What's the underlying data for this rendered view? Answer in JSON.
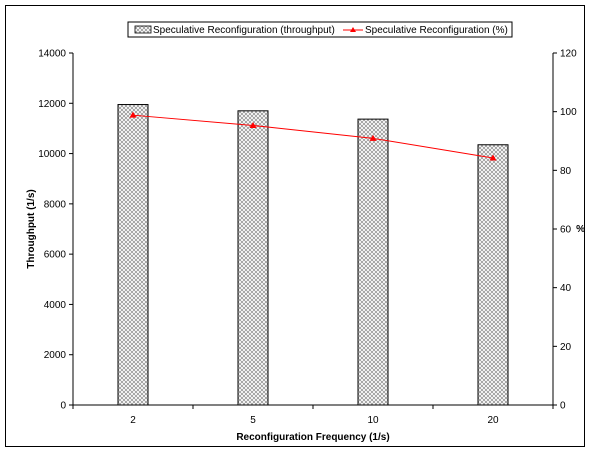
{
  "chart_data": {
    "type": "bar",
    "categories": [
      "2",
      "5",
      "10",
      "20"
    ],
    "xlabel": "Reconfiguration Frequency (1/s)",
    "ylabel": "Throughput (1/s)",
    "y2label": "%",
    "ylim": [
      0,
      14000
    ],
    "y2lim": [
      0,
      120
    ],
    "yticks": [
      0,
      2000,
      4000,
      6000,
      8000,
      10000,
      12000,
      14000
    ],
    "y2ticks": [
      0,
      20,
      40,
      60,
      80,
      100,
      120
    ],
    "grid": false,
    "legend_position": "top",
    "series": [
      {
        "name": "Speculative Reconfiguration (throughput)",
        "type": "bar",
        "axis": "left",
        "values": [
          11950,
          11700,
          11370,
          10350
        ],
        "fill_pattern": "crosshatch"
      },
      {
        "name": "Speculative Reconfiguration (%)",
        "type": "line",
        "axis": "right",
        "values": [
          98.8,
          95.3,
          90.9,
          84.2
        ],
        "marker": "triangle",
        "color": "#ff0000"
      }
    ]
  }
}
